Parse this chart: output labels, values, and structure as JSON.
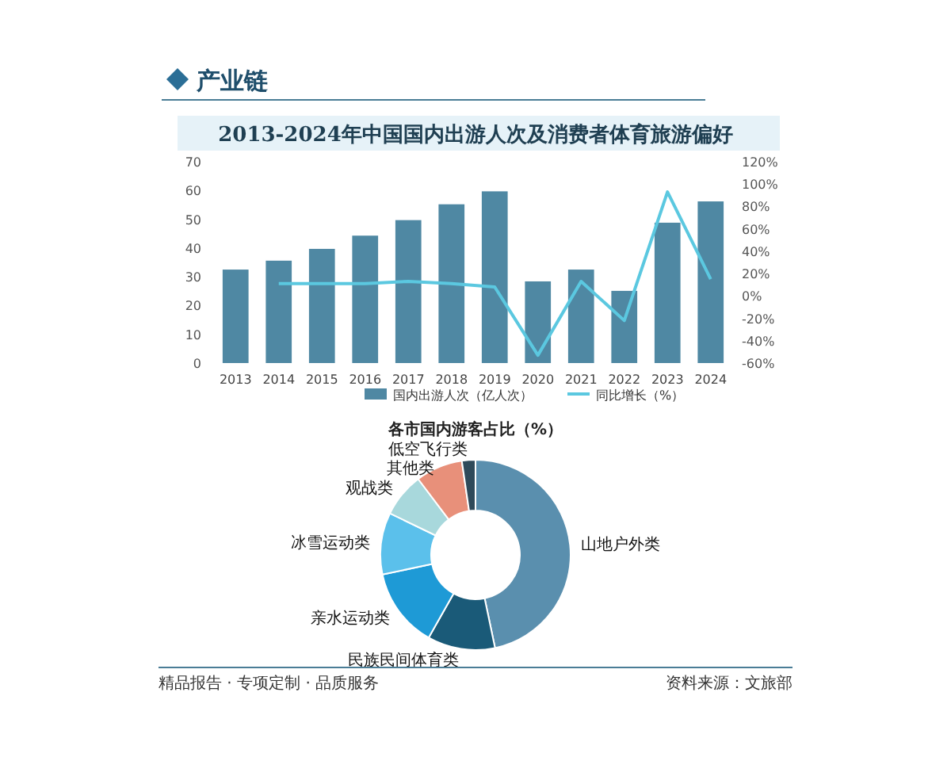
{
  "chart_data": [
    {
      "type": "bar",
      "title": "2013-2024年中国国内出游人次及消费者体育旅游偏好",
      "annotations": [
        "产业链"
      ],
      "categories": [
        "2013",
        "2014",
        "2015",
        "2016",
        "2017",
        "2018",
        "2019",
        "2020",
        "2021",
        "2022",
        "2023",
        "2024"
      ],
      "series": [
        {
          "name": "国内出游人次（亿人次）",
          "type": "bar",
          "color": "#4f88a3",
          "values": [
            32.5,
            35.6,
            39.7,
            44.3,
            49.7,
            55.2,
            59.7,
            28.4,
            32.5,
            25.1,
            48.8,
            56.2
          ]
        },
        {
          "name": "同比增长（%）",
          "type": "line",
          "axis": "y2",
          "color": "#5bc8e0",
          "values": [
            null,
            11,
            11,
            11,
            13,
            11,
            8,
            -53,
            13,
            -22,
            93,
            15
          ]
        }
      ],
      "ylim": [
        0,
        70
      ],
      "yticks": [
        0,
        10,
        20,
        30,
        40,
        50,
        60,
        70
      ],
      "y2lim": [
        -60,
        120
      ],
      "y2ticks": [
        {
          "value": -60,
          "label": "-60%"
        },
        {
          "value": -40,
          "label": "-40%"
        },
        {
          "value": -20,
          "label": "-20%"
        },
        {
          "value": 0,
          "label": "0%"
        },
        {
          "value": 20,
          "label": "20%"
        },
        {
          "value": 40,
          "label": "40%"
        },
        {
          "value": 60,
          "label": "60%"
        },
        {
          "value": 80,
          "label": "80%"
        },
        {
          "value": 100,
          "label": "100%"
        },
        {
          "value": 120,
          "label": "120%"
        }
      ],
      "legend": "bottom"
    },
    {
      "type": "donut",
      "title": "各市国内游客占比（%）",
      "annotations": [
        "精品报告 · 专项定制 · 品质服务",
        "资料来源：文旅部"
      ],
      "categories": [
        "山地户外类",
        "民族民间体育类",
        "亲水运动类",
        "冰雪运动类",
        "观战类",
        "其他类",
        "低空飞行类"
      ],
      "values": [
        46.7,
        11.5,
        13.5,
        10.5,
        7.5,
        8,
        2.3
      ],
      "colors": [
        "#5a8fae",
        "#1a5a78",
        "#1e9ad6",
        "#5bc0eb",
        "#a8d8dc",
        "#e8907a",
        "#2f4a5a"
      ]
    }
  ]
}
